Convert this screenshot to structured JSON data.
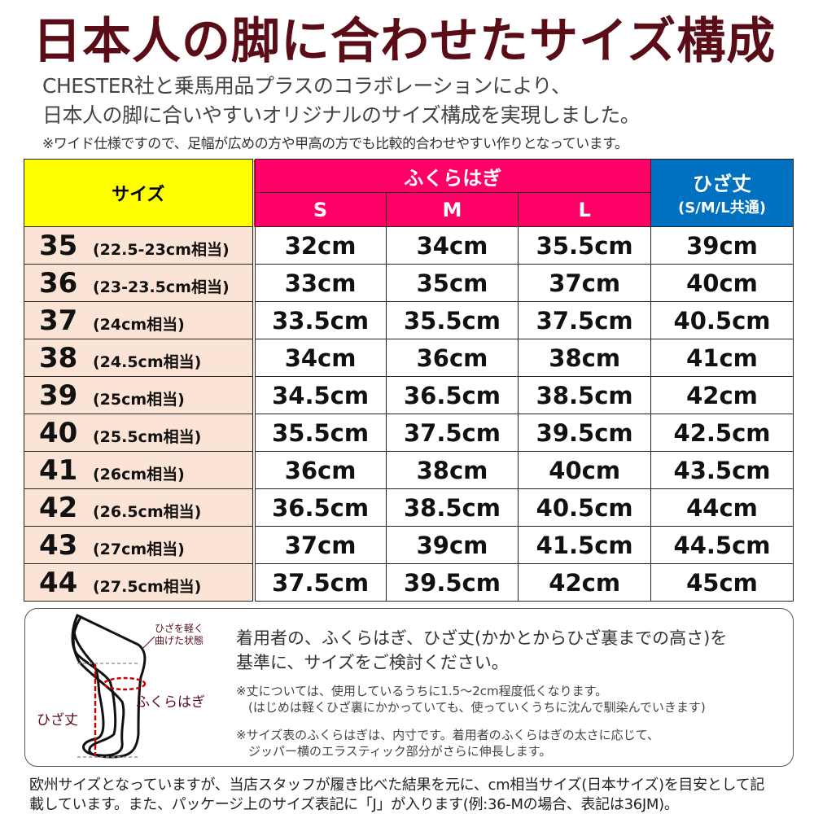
{
  "title": "日本人の脚に合わせたサイズ構成",
  "intro": [
    "CHESTER社と乗馬用品プラスのコラボレーションにより、",
    "日本人の脚に合いやすいオリジナルのサイズ構成を実現しました。"
  ],
  "note": "※ワイド仕様ですので、足幅が広めの方や甲高の方でも比較的合わせやすい作りとなっています。",
  "table": {
    "header_size": "サイズ",
    "header_calf": "ふくらはぎ",
    "header_knee": "ひざ丈",
    "header_knee_sub": "(S/M/L共通)",
    "calf_cols": [
      "S",
      "M",
      "L"
    ],
    "rows": [
      {
        "size": "35",
        "jp": "(22.5-23cm相当)",
        "s": "32cm",
        "m": "34cm",
        "l": "35.5cm",
        "knee": "39cm"
      },
      {
        "size": "36",
        "jp": "(23-23.5cm相当)",
        "s": "33cm",
        "m": "35cm",
        "l": "37cm",
        "knee": "40cm"
      },
      {
        "size": "37",
        "jp": "(24cm相当)",
        "s": "33.5cm",
        "m": "35.5cm",
        "l": "37.5cm",
        "knee": "40.5cm"
      },
      {
        "size": "38",
        "jp": "(24.5cm相当)",
        "s": "34cm",
        "m": "36cm",
        "l": "38cm",
        "knee": "41cm"
      },
      {
        "size": "39",
        "jp": "(25cm相当)",
        "s": "34.5cm",
        "m": "36.5cm",
        "l": "38.5cm",
        "knee": "42cm"
      },
      {
        "size": "40",
        "jp": "(25.5cm相当)",
        "s": "35.5cm",
        "m": "37.5cm",
        "l": "39.5cm",
        "knee": "42.5cm"
      },
      {
        "size": "41",
        "jp": "(26cm相当)",
        "s": "36cm",
        "m": "38cm",
        "l": "40cm",
        "knee": "43.5cm"
      },
      {
        "size": "42",
        "jp": "(26.5cm相当)",
        "s": "36.5cm",
        "m": "38.5cm",
        "l": "40.5cm",
        "knee": "44cm"
      },
      {
        "size": "43",
        "jp": "(27cm相当)",
        "s": "37cm",
        "m": "39cm",
        "l": "41.5cm",
        "knee": "44.5cm"
      },
      {
        "size": "44",
        "jp": "(27.5cm相当)",
        "s": "37.5cm",
        "m": "39.5cm",
        "l": "42cm",
        "knee": "45cm"
      }
    ]
  },
  "diagram": {
    "label_bent": [
      "ひざを軽く",
      "曲げた状態"
    ],
    "label_calf": "ふくらはぎ",
    "label_knee": "ひざ丈"
  },
  "info": {
    "main": [
      "着用者の、ふくらはぎ、ひざ丈(かかとからひざ裏までの高さ)を",
      "基準に、サイズをご検討ください。"
    ],
    "note1": [
      "※丈については、使用しているうちに1.5〜2cm程度低くなります。",
      "(はじめは軽くひざ裏にかかっていても、使っていくうちに沈んで馴染んでいきます)"
    ],
    "note2": [
      "※サイズ表のふくらはぎは、内寸です。着用者のふくらはぎの太さに応じて、",
      "ジッパー横のエラスティック部分がさらに伸長します。"
    ]
  },
  "footer": [
    "欧州サイズとなっていますが、当店スタッフが履き比べた結果を元に、cm相当サイズ(日本サイズ)を目安として記",
    "載しています。また、パッケージ上のサイズ表記に「J」が入ります(例:36-Mの場合、表記は36JM)。"
  ],
  "colors": {
    "title": "#5a0d17",
    "size_header": "#ffff00",
    "calf_header": "#ff0066",
    "knee_header": "#0070c0",
    "size_cell": "#fbe4d6",
    "measure": "#cc0000"
  }
}
